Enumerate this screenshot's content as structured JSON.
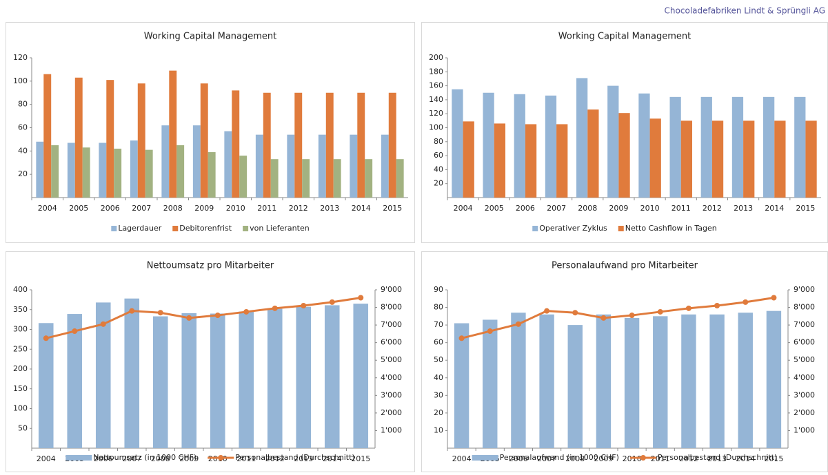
{
  "header": "Chocoladefabriken Lindt & Sprüngli AG",
  "chart_data": [
    {
      "type": "bar",
      "title": "Working Capital Management",
      "categories": [
        "2004",
        "2005",
        "2006",
        "2007",
        "2008",
        "2009",
        "2010",
        "2011",
        "2012",
        "2013",
        "2014",
        "2015"
      ],
      "series": [
        {
          "name": "Lagerdauer",
          "color": "#95b5d6",
          "values": [
            48,
            47,
            47,
            49,
            62,
            62,
            57,
            54,
            54,
            54,
            54,
            54
          ]
        },
        {
          "name": "Debitorenfrist",
          "color": "#e07b3c",
          "values": [
            106,
            103,
            101,
            98,
            109,
            98,
            92,
            90,
            90,
            90,
            90,
            90
          ]
        },
        {
          "name": "von Lieferanten",
          "color": "#a2b281",
          "values": [
            45,
            43,
            42,
            41,
            45,
            39,
            36,
            33,
            33,
            33,
            33,
            33
          ]
        }
      ],
      "ylim": [
        0,
        120
      ],
      "yticks": [
        20,
        40,
        60,
        80,
        100,
        120
      ],
      "grid": false,
      "legend": "bottom"
    },
    {
      "type": "bar",
      "title": "Working Capital Management",
      "categories": [
        "2004",
        "2005",
        "2006",
        "2007",
        "2008",
        "2009",
        "2010",
        "2011",
        "2012",
        "2013",
        "2014",
        "2015"
      ],
      "series": [
        {
          "name": "Operativer Zyklus",
          "color": "#95b5d6",
          "values": [
            155,
            150,
            148,
            146,
            171,
            160,
            149,
            144,
            144,
            144,
            144,
            144
          ]
        },
        {
          "name": "Netto Cashflow in Tagen",
          "color": "#e07b3c",
          "values": [
            109,
            106,
            105,
            105,
            126,
            121,
            113,
            110,
            110,
            110,
            110,
            110
          ]
        }
      ],
      "ylim": [
        0,
        200
      ],
      "yticks": [
        20,
        40,
        60,
        80,
        100,
        120,
        140,
        160,
        180,
        200
      ],
      "grid": false,
      "legend": "bottom"
    },
    {
      "type": "combo",
      "title": "Nettoumsatz  pro Mitarbeiter",
      "categories": [
        "2004",
        "2005",
        "2006",
        "2007",
        "2008",
        "2009",
        "2010",
        "2011",
        "2012",
        "2013",
        "2014",
        "2015"
      ],
      "series": [
        {
          "name": "Nettoumsatz (in 1000 CHF)",
          "type": "bar",
          "color": "#95b5d6",
          "values": [
            316,
            339,
            368,
            378,
            333,
            341,
            340,
            345,
            352,
            357,
            361,
            365
          ]
        },
        {
          "name": "Personalbestand (Durchschnitt)",
          "type": "line",
          "axis": "y2",
          "color": "#e07b3c",
          "values": [
            6250,
            6650,
            7050,
            7800,
            7700,
            7400,
            7550,
            7750,
            7950,
            8100,
            8300,
            8550
          ]
        }
      ],
      "ylim": [
        0,
        400
      ],
      "yticks": [
        50,
        100,
        150,
        200,
        250,
        300,
        350,
        400
      ],
      "y2lim": [
        0,
        9000
      ],
      "y2ticks": [
        {
          "value": 1000,
          "label": "1'000"
        },
        {
          "value": 2000,
          "label": "2'000"
        },
        {
          "value": 3000,
          "label": "3'000"
        },
        {
          "value": 4000,
          "label": "4'000"
        },
        {
          "value": 5000,
          "label": "5'000"
        },
        {
          "value": 6000,
          "label": "6'000"
        },
        {
          "value": 7000,
          "label": "7'000"
        },
        {
          "value": 8000,
          "label": "8'000"
        },
        {
          "value": 9000,
          "label": "9'000"
        }
      ],
      "grid": false,
      "legend": "bottom"
    },
    {
      "type": "combo",
      "title": "Personalaufwand  pro Mitarbeiter",
      "categories": [
        "2004",
        "2005",
        "2006",
        "2007",
        "2008",
        "2009",
        "2010",
        "2011",
        "2012",
        "2013",
        "2014",
        "2015"
      ],
      "series": [
        {
          "name": "Personalaufwand (in 1000 CHF)",
          "type": "bar",
          "color": "#95b5d6",
          "values": [
            71,
            73,
            77,
            76,
            70,
            76,
            74,
            75,
            76,
            76,
            77,
            78
          ]
        },
        {
          "name": "Personalbestand (Durchschnitt)",
          "type": "line",
          "axis": "y2",
          "color": "#e07b3c",
          "values": [
            6250,
            6650,
            7050,
            7800,
            7700,
            7400,
            7550,
            7750,
            7950,
            8100,
            8300,
            8550
          ]
        }
      ],
      "ylim": [
        0,
        90
      ],
      "yticks": [
        10,
        20,
        30,
        40,
        50,
        60,
        70,
        80,
        90
      ],
      "y2lim": [
        0,
        9000
      ],
      "y2ticks": [
        {
          "value": 1000,
          "label": "1'000"
        },
        {
          "value": 2000,
          "label": "2'000"
        },
        {
          "value": 3000,
          "label": "3'000"
        },
        {
          "value": 4000,
          "label": "4'000"
        },
        {
          "value": 5000,
          "label": "5'000"
        },
        {
          "value": 6000,
          "label": "6'000"
        },
        {
          "value": 7000,
          "label": "7'000"
        },
        {
          "value": 8000,
          "label": "8'000"
        },
        {
          "value": 9000,
          "label": "9'000"
        }
      ],
      "grid": false,
      "legend": "bottom"
    }
  ]
}
